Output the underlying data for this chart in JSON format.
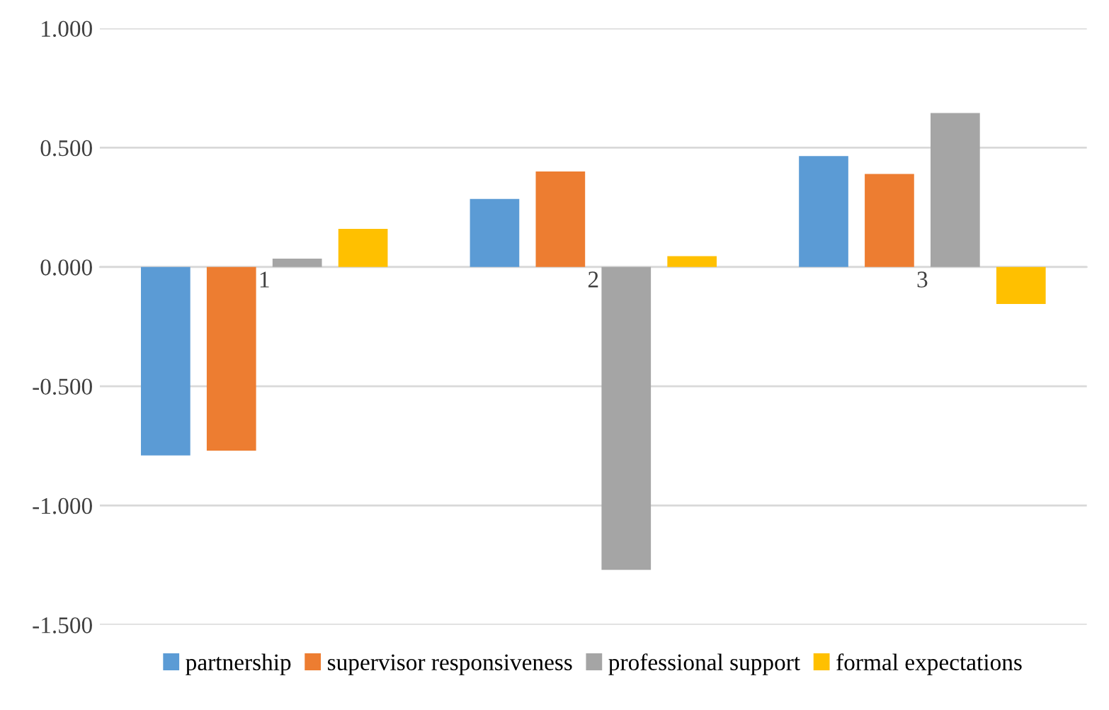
{
  "chart_data": {
    "type": "bar",
    "categories": [
      "1",
      "2",
      "3"
    ],
    "series": [
      {
        "name": "partnership",
        "color": "#5b9bd5",
        "values": [
          -0.79,
          0.285,
          0.465
        ]
      },
      {
        "name": "supervisor responsiveness",
        "color": "#ed7d31",
        "values": [
          -0.77,
          0.4,
          0.39
        ]
      },
      {
        "name": "professional support",
        "color": "#a5a5a5",
        "values": [
          0.035,
          -1.27,
          0.645
        ]
      },
      {
        "name": "formal expectations",
        "color": "#ffc000",
        "values": [
          0.16,
          0.045,
          -0.155
        ]
      }
    ],
    "ylim": [
      -1.5,
      1.0
    ],
    "yticks": [
      {
        "value": -1.5,
        "label": "-1.500"
      },
      {
        "value": -1.0,
        "label": "-1.000"
      },
      {
        "value": -0.5,
        "label": "-0.500"
      },
      {
        "value": 0,
        "label": "0.000"
      },
      {
        "value": 0.5,
        "label": "0.500"
      },
      {
        "value": 1.0,
        "label": "1.000"
      }
    ],
    "grid": "y",
    "legend": "bottom"
  }
}
